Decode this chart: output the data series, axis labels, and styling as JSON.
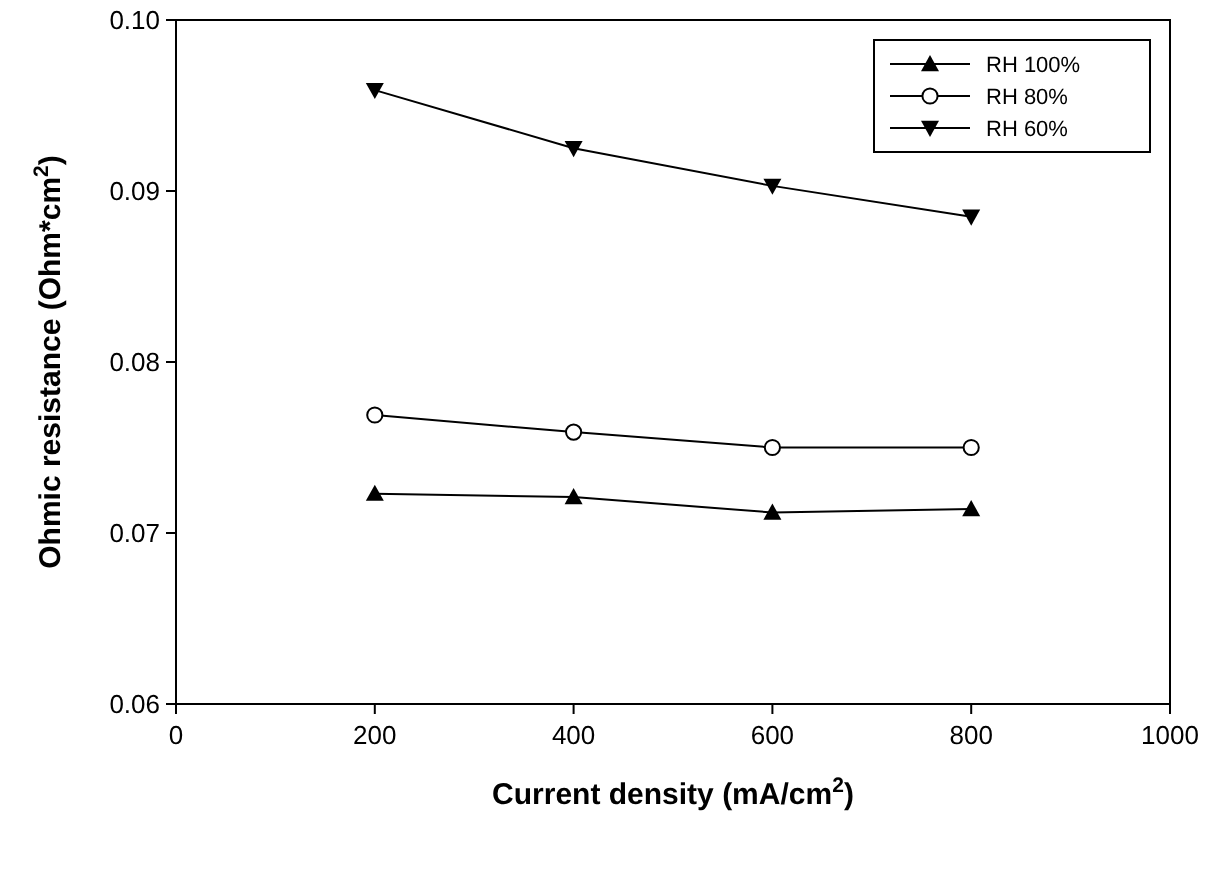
{
  "chart_data": {
    "type": "line",
    "xlabel": "Current density (mA/cm$^{2}$)",
    "ylabel": "Ohmic resistance (Ohm*cm$^{2}$)",
    "x": [
      200,
      400,
      600,
      800
    ],
    "series": [
      {
        "name": "RH 100%",
        "color": "#000000",
        "marker": "triangle",
        "values": [
          0.0723,
          0.0721,
          0.0712,
          0.0714
        ]
      },
      {
        "name": "RH 80%",
        "color": "#000000",
        "marker": "circle",
        "values": [
          0.0769,
          0.0759,
          0.075,
          0.075
        ]
      },
      {
        "name": "RH 60%",
        "color": "#000000",
        "marker": "triangle-down",
        "values": [
          0.0959,
          0.0925,
          0.0903,
          0.0885
        ]
      }
    ],
    "xlim": [
      0,
      1000
    ],
    "xticks": [
      0,
      200,
      400,
      600,
      800,
      1000
    ],
    "ylim": [
      0.06,
      0.1
    ],
    "yticks": [
      0.06,
      0.07,
      0.08,
      0.09,
      {
        "value": 0.1,
        "label": "0.10"
      }
    ],
    "grid": false,
    "legend": "top right",
    "line_style": "solid"
  }
}
